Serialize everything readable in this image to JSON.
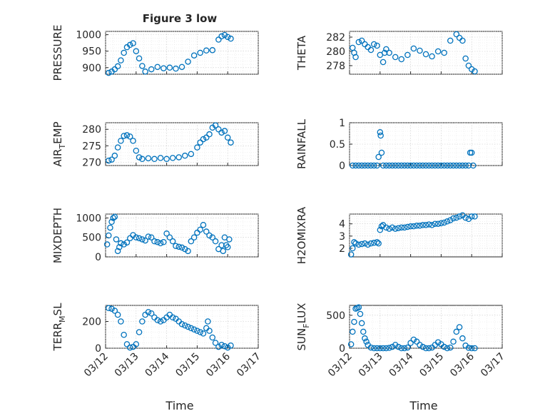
{
  "figure": {
    "title": "Figure 3 low",
    "xlabel": "Time",
    "x_tick_labels": [
      "03/12",
      "03/13",
      "03/14",
      "03/15",
      "03/16",
      "03/17"
    ]
  },
  "chart_data": [
    {
      "type": "scatter",
      "ylabel": "PRESSURE",
      "title": "Figure 3 low",
      "xlim": [
        12,
        17
      ],
      "ylim": [
        880,
        1010
      ],
      "y_ticks": [
        900,
        950,
        1000
      ],
      "y_tick_labels": [
        "900",
        "950",
        "1000"
      ],
      "grid": true,
      "x": [
        12.1,
        12.2,
        12.3,
        12.4,
        12.5,
        12.6,
        12.7,
        12.8,
        12.9,
        13.0,
        13.1,
        13.2,
        13.3,
        13.5,
        13.7,
        13.9,
        14.1,
        14.3,
        14.5,
        14.7,
        14.9,
        15.1,
        15.3,
        15.5,
        15.7,
        15.8,
        15.9,
        16.0,
        16.1
      ],
      "y": [
        884,
        888,
        895,
        904,
        922,
        945,
        962,
        969,
        974,
        950,
        928,
        905,
        888,
        895,
        902,
        898,
        900,
        897,
        902,
        918,
        937,
        945,
        952,
        953,
        985,
        995,
        999,
        993,
        988
      ]
    },
    {
      "type": "scatter",
      "ylabel": "THETA",
      "xlim": [
        12,
        17
      ],
      "ylim": [
        276.8,
        282.8
      ],
      "y_ticks": [
        278,
        280,
        282
      ],
      "y_tick_labels": [
        "278",
        "280",
        "282"
      ],
      "grid": true,
      "x": [
        12.1,
        12.15,
        12.2,
        12.3,
        12.4,
        12.5,
        12.6,
        12.7,
        12.8,
        12.9,
        13.0,
        13.1,
        13.15,
        13.2,
        13.3,
        13.5,
        13.7,
        13.9,
        14.1,
        14.3,
        14.5,
        14.7,
        14.9,
        15.1,
        15.3,
        15.5,
        15.6,
        15.7,
        15.8,
        15.9,
        16.0,
        16.1
      ],
      "y": [
        280.5,
        279.8,
        279.2,
        281.3,
        281.5,
        281.0,
        280.6,
        280.2,
        281.0,
        280.8,
        279.5,
        278.5,
        279.8,
        280.3,
        279.8,
        279.2,
        278.9,
        279.5,
        280.4,
        280.1,
        279.6,
        279.3,
        280.0,
        279.8,
        281.5,
        282.4,
        281.9,
        281.5,
        279.0,
        278.0,
        277.5,
        277.2
      ]
    },
    {
      "type": "scatter",
      "ylabel": "AIR_TEMP",
      "xlim": [
        12,
        17
      ],
      "ylim": [
        269,
        282
      ],
      "y_ticks": [
        270,
        275,
        280
      ],
      "y_tick_labels": [
        "270",
        "275",
        "280"
      ],
      "grid": true,
      "x": [
        12.1,
        12.2,
        12.3,
        12.4,
        12.5,
        12.6,
        12.7,
        12.8,
        12.9,
        13.0,
        13.1,
        13.2,
        13.4,
        13.6,
        13.8,
        14.0,
        14.2,
        14.4,
        14.6,
        14.8,
        15.0,
        15.1,
        15.2,
        15.3,
        15.4,
        15.5,
        15.6,
        15.7,
        15.8,
        15.9,
        16.0,
        16.1
      ],
      "y": [
        270.5,
        270.8,
        272.0,
        274.5,
        276.5,
        278.0,
        278.2,
        277.8,
        276.5,
        273.5,
        271.5,
        271.0,
        271.2,
        271.0,
        271.3,
        271.0,
        271.3,
        271.5,
        272.0,
        272.5,
        274.5,
        276.0,
        277.0,
        277.5,
        278.5,
        280.5,
        281.2,
        280.0,
        279.0,
        279.5,
        277.5,
        276.0
      ]
    },
    {
      "type": "scatter",
      "ylabel": "RAINFALL",
      "xlim": [
        12,
        17
      ],
      "ylim": [
        0,
        1
      ],
      "y_ticks": [
        0,
        0.5,
        1
      ],
      "y_tick_labels": [
        "0",
        "0.5",
        "1"
      ],
      "grid": true,
      "x": [
        12.1,
        12.2,
        12.3,
        12.4,
        12.5,
        12.6,
        12.7,
        12.8,
        12.9,
        12.95,
        13.0,
        13.02,
        13.05,
        13.1,
        13.2,
        13.3,
        13.4,
        13.5,
        13.6,
        13.7,
        13.8,
        13.9,
        14.0,
        14.1,
        14.2,
        14.3,
        14.4,
        14.5,
        14.6,
        14.7,
        14.8,
        14.9,
        15.0,
        15.1,
        15.2,
        15.3,
        15.4,
        15.5,
        15.6,
        15.7,
        15.8,
        15.9,
        15.95,
        16.0,
        16.05
      ],
      "y": [
        0,
        0,
        0,
        0,
        0,
        0,
        0,
        0,
        0,
        0.2,
        0.78,
        0.7,
        0.3,
        0,
        0,
        0,
        0,
        0,
        0,
        0,
        0,
        0,
        0,
        0,
        0,
        0,
        0,
        0,
        0,
        0,
        0,
        0,
        0,
        0,
        0,
        0,
        0,
        0,
        0,
        0,
        0,
        0,
        0.3,
        0.3,
        0
      ]
    },
    {
      "type": "scatter",
      "ylabel": "MIXDEPTH",
      "xlim": [
        12,
        17
      ],
      "ylim": [
        0,
        1100
      ],
      "y_ticks": [
        0,
        500,
        1000
      ],
      "y_tick_labels": [
        "0",
        "500",
        "1000"
      ],
      "grid": true,
      "x": [
        12.05,
        12.1,
        12.15,
        12.2,
        12.25,
        12.3,
        12.35,
        12.4,
        12.45,
        12.5,
        12.6,
        12.7,
        12.8,
        12.9,
        13.0,
        13.1,
        13.2,
        13.3,
        13.4,
        13.5,
        13.6,
        13.7,
        13.8,
        13.9,
        14.0,
        14.1,
        14.2,
        14.3,
        14.4,
        14.5,
        14.6,
        14.7,
        14.8,
        14.9,
        15.0,
        15.1,
        15.2,
        15.3,
        15.4,
        15.5,
        15.6,
        15.7,
        15.8,
        15.85,
        15.9,
        15.95,
        16.0,
        16.05
      ],
      "y": [
        320,
        550,
        750,
        900,
        1000,
        1030,
        450,
        150,
        250,
        350,
        320,
        370,
        480,
        560,
        500,
        480,
        450,
        420,
        520,
        500,
        400,
        380,
        350,
        380,
        600,
        500,
        400,
        280,
        260,
        240,
        200,
        150,
        400,
        500,
        620,
        700,
        820,
        650,
        550,
        500,
        400,
        200,
        300,
        150,
        500,
        300,
        250,
        450
      ]
    },
    {
      "type": "scatter",
      "ylabel": "H2OMIXRA",
      "xlim": [
        12,
        17
      ],
      "ylim": [
        1.3,
        4.8
      ],
      "y_ticks": [
        2,
        3,
        4
      ],
      "y_tick_labels": [
        "2",
        "3",
        "4"
      ],
      "grid": true,
      "x": [
        12.05,
        12.1,
        12.15,
        12.2,
        12.3,
        12.4,
        12.5,
        12.6,
        12.7,
        12.8,
        12.9,
        12.95,
        13.0,
        13.05,
        13.1,
        13.2,
        13.3,
        13.4,
        13.5,
        13.6,
        13.7,
        13.8,
        13.9,
        14.0,
        14.1,
        14.2,
        14.3,
        14.4,
        14.5,
        14.6,
        14.7,
        14.8,
        14.9,
        15.0,
        15.1,
        15.2,
        15.3,
        15.4,
        15.5,
        15.6,
        15.7,
        15.8,
        15.9,
        16.0,
        16.1
      ],
      "y": [
        1.5,
        2.0,
        2.5,
        2.4,
        2.3,
        2.35,
        2.4,
        2.3,
        2.4,
        2.45,
        2.5,
        2.4,
        3.5,
        3.8,
        3.9,
        3.7,
        3.6,
        3.7,
        3.6,
        3.65,
        3.7,
        3.7,
        3.75,
        3.8,
        3.8,
        3.85,
        3.85,
        3.9,
        3.9,
        3.95,
        3.9,
        4.0,
        4.0,
        4.05,
        4.1,
        4.2,
        4.3,
        4.45,
        4.5,
        4.6,
        4.7,
        4.5,
        4.4,
        4.6,
        4.6
      ]
    },
    {
      "type": "scatter",
      "ylabel": "TERR_MSL",
      "xlim": [
        12,
        17
      ],
      "ylim": [
        0,
        320
      ],
      "y_ticks": [
        0,
        200
      ],
      "y_tick_labels": [
        "0",
        "200"
      ],
      "grid": true,
      "x": [
        12.1,
        12.2,
        12.3,
        12.4,
        12.5,
        12.6,
        12.7,
        12.8,
        12.9,
        13.0,
        13.1,
        13.2,
        13.3,
        13.4,
        13.5,
        13.6,
        13.7,
        13.8,
        13.9,
        14.0,
        14.1,
        14.2,
        14.3,
        14.4,
        14.5,
        14.6,
        14.7,
        14.8,
        14.9,
        15.0,
        15.1,
        15.2,
        15.3,
        15.35,
        15.4,
        15.5,
        15.6,
        15.7,
        15.8,
        15.9,
        16.0,
        16.1
      ],
      "y": [
        300,
        295,
        280,
        250,
        200,
        100,
        30,
        5,
        10,
        30,
        120,
        200,
        250,
        270,
        260,
        230,
        210,
        200,
        210,
        230,
        250,
        230,
        220,
        200,
        180,
        170,
        160,
        150,
        140,
        130,
        120,
        110,
        150,
        200,
        130,
        80,
        40,
        10,
        25,
        15,
        5,
        20
      ]
    },
    {
      "type": "scatter",
      "ylabel": "SUN_FLUX",
      "xlim": [
        12,
        17
      ],
      "ylim": [
        0,
        650
      ],
      "y_ticks": [
        0,
        500
      ],
      "y_tick_labels": [
        "0",
        "500"
      ],
      "grid": true,
      "x": [
        12.05,
        12.1,
        12.15,
        12.2,
        12.25,
        12.3,
        12.35,
        12.4,
        12.45,
        12.5,
        12.55,
        12.6,
        12.7,
        12.8,
        12.9,
        13.0,
        13.1,
        13.2,
        13.3,
        13.4,
        13.5,
        13.6,
        13.7,
        13.8,
        13.9,
        14.0,
        14.1,
        14.2,
        14.3,
        14.4,
        14.5,
        14.6,
        14.7,
        14.8,
        14.9,
        15.0,
        15.1,
        15.2,
        15.3,
        15.4,
        15.5,
        15.6,
        15.7,
        15.8,
        15.9,
        16.0,
        16.1
      ],
      "y": [
        60,
        250,
        400,
        600,
        610,
        620,
        520,
        380,
        250,
        150,
        100,
        50,
        10,
        0,
        0,
        0,
        0,
        0,
        5,
        20,
        50,
        20,
        0,
        0,
        10,
        80,
        130,
        100,
        50,
        20,
        0,
        0,
        10,
        50,
        90,
        60,
        20,
        0,
        10,
        100,
        250,
        320,
        150,
        40,
        5,
        0,
        0
      ]
    }
  ]
}
